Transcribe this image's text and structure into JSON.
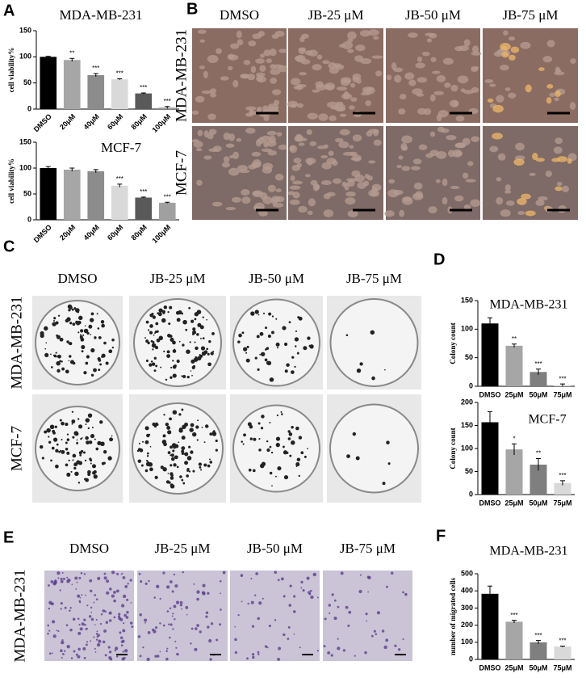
{
  "panel_letters": [
    "A",
    "B",
    "C",
    "D",
    "E",
    "F"
  ],
  "panel_b": {
    "columns": [
      "DMSO",
      "JB-25 μM",
      "JB-50 μM",
      "JB-75 μM"
    ],
    "rows": [
      "MDA-MB-231",
      "MCF-7"
    ]
  },
  "panel_c": {
    "columns": [
      "DMSO",
      "JB-25 μM",
      "JB-50 μM",
      "JB-75 μM"
    ],
    "rows": [
      "MDA-MB-231",
      "MCF-7"
    ]
  },
  "panel_e": {
    "columns": [
      "DMSO",
      "JB-25 μM",
      "JB-50 μM",
      "JB-75 μM"
    ],
    "rows": [
      "MDA-MB-231"
    ]
  },
  "chart_data": [
    {
      "type": "bar",
      "title": "MDA-MB-231",
      "y_label": "cell viability%",
      "categories": [
        "DMSO",
        "20μM",
        "40μM",
        "60μM",
        "80μM",
        "100μM"
      ],
      "values": [
        100,
        94,
        65,
        57,
        30,
        3
      ],
      "errors": [
        1,
        3,
        3,
        1,
        1,
        2
      ],
      "colors": [
        "#000000",
        "#a6a6a6",
        "#8c8c8c",
        "#d9d9d9",
        "#595959",
        "#a0a0a0"
      ],
      "annotations": [
        null,
        "**",
        "***",
        "***",
        "***",
        "***"
      ],
      "ylim": [
        0,
        150
      ],
      "yticks": [
        0,
        50,
        100,
        150
      ]
    },
    {
      "type": "bar",
      "title": "MCF-7",
      "y_label": "cell viability%",
      "categories": [
        "DMSO",
        "20μM",
        "40μM",
        "60μM",
        "80μM",
        "100μM"
      ],
      "values": [
        100,
        97,
        94,
        66,
        43,
        33
      ],
      "errors": [
        3,
        3,
        3,
        3,
        1,
        1
      ],
      "colors": [
        "#000000",
        "#a6a6a6",
        "#8c8c8c",
        "#d9d9d9",
        "#595959",
        "#a0a0a0"
      ],
      "annotations": [
        null,
        null,
        null,
        "***",
        "***",
        "***"
      ],
      "ylim": [
        0,
        150
      ],
      "yticks": [
        0,
        50,
        100,
        150
      ]
    },
    {
      "type": "bar",
      "title": "MDA-MB-231",
      "y_label": "Colony count",
      "categories": [
        "DMSO",
        "25μM",
        "50μM",
        "75μM"
      ],
      "values": [
        110,
        71,
        25,
        2
      ],
      "errors": [
        10,
        3,
        5,
        2
      ],
      "colors": [
        "#000000",
        "#a6a6a6",
        "#7f7f7f",
        "#d9d9d9"
      ],
      "annotations": [
        null,
        "**",
        "***",
        "***"
      ],
      "ylim": [
        0,
        150
      ],
      "yticks": [
        0,
        50,
        100,
        150
      ]
    },
    {
      "type": "bar",
      "title": "MCF-7",
      "y_label": "Colony count",
      "categories": [
        "DMSO",
        "25μM",
        "50μM",
        "75μM"
      ],
      "values": [
        157,
        98,
        65,
        25
      ],
      "errors": [
        23,
        12,
        13,
        5
      ],
      "colors": [
        "#000000",
        "#a6a6a6",
        "#7f7f7f",
        "#d9d9d9"
      ],
      "annotations": [
        null,
        "*",
        "**",
        "***"
      ],
      "ylim": [
        0,
        200
      ],
      "yticks": [
        0,
        50,
        100,
        150,
        200
      ]
    },
    {
      "type": "bar",
      "title": "MDA-MB-231",
      "y_label": "number of migrated cells",
      "categories": [
        "DMSO",
        "25μM",
        "50μM",
        "75μM"
      ],
      "values": [
        383,
        220,
        100,
        75
      ],
      "errors": [
        45,
        8,
        10,
        3
      ],
      "colors": [
        "#000000",
        "#a6a6a6",
        "#7f7f7f",
        "#d9d9d9"
      ],
      "annotations": [
        null,
        "***",
        "***",
        "***"
      ],
      "ylim": [
        0,
        500
      ],
      "yticks": [
        0,
        100,
        200,
        300,
        400,
        500
      ]
    }
  ]
}
